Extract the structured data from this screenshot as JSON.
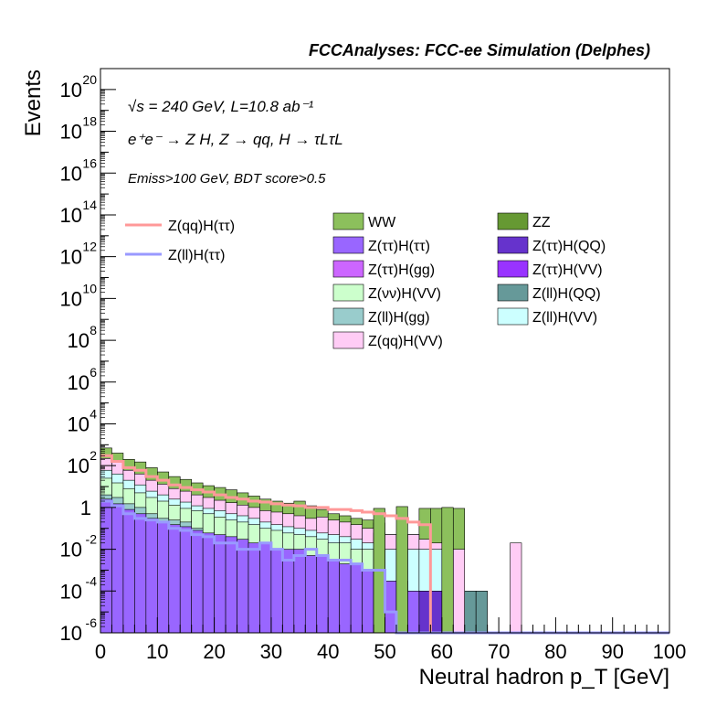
{
  "title": "FCCAnalyses: FCC-ee Simulation (Delphes)",
  "annotations": {
    "line1": "√s = 240 GeV, L=10.8 ab⁻¹",
    "line2": "e⁺e⁻ → Z H, Z → qq, H → τLτL",
    "line3": "Emiss>100 GeV, BDT score>0.5"
  },
  "chart_data": {
    "type": "histogram-stacked",
    "title": "FCCAnalyses: FCC-ee Simulation (Delphes)",
    "xlabel": "Neutral hadron p_T [GeV]",
    "ylabel": "Events",
    "xlim": [
      0,
      100
    ],
    "ylim": [
      1e-06,
      1e+21
    ],
    "log_y": true,
    "grid": false,
    "legend_placement": "upper middle",
    "x_ticks": [
      "0",
      "10",
      "20",
      "30",
      "40",
      "50",
      "60",
      "70",
      "80",
      "90",
      "100"
    ],
    "y_ticks": [
      {
        "base": "10",
        "exp": "-6"
      },
      {
        "base": "10",
        "exp": "-4"
      },
      {
        "base": "10",
        "exp": "-2"
      },
      {
        "base": "1",
        "exp": ""
      },
      {
        "base": "10",
        "exp": "2"
      },
      {
        "base": "10",
        "exp": "4"
      },
      {
        "base": "10",
        "exp": "6"
      },
      {
        "base": "10",
        "exp": "8"
      },
      {
        "base": "10",
        "exp": "10"
      },
      {
        "base": "10",
        "exp": "12"
      },
      {
        "base": "10",
        "exp": "14"
      },
      {
        "base": "10",
        "exp": "16"
      },
      {
        "base": "10",
        "exp": "18"
      },
      {
        "base": "10",
        "exp": "20"
      }
    ],
    "bin_width": 2,
    "bin_edges_start": 0,
    "stack_tops": [
      {
        "name": "WW",
        "color": "#8cc05c",
        "values": [
          700,
          400,
          200,
          150,
          80,
          50,
          30,
          22,
          15,
          11,
          9,
          7,
          5,
          3.5,
          2.5,
          2,
          1.6,
          2,
          1.2,
          0.8,
          0.5,
          0.4,
          0.3,
          0.25,
          0.18,
          0.05,
          0.05,
          0.05,
          0.9,
          0.9,
          0.05,
          0.9,
          0
        ]
      },
      {
        "name": "Z(qq)H(VV)",
        "color": "#ffccf5",
        "values": [
          220,
          150,
          60,
          40,
          20,
          13,
          8,
          6,
          4,
          3,
          2.2,
          1.7,
          1.3,
          1,
          0.7,
          0.6,
          0.5,
          0.4,
          0.3,
          0.35,
          0.25,
          0.2,
          0.15,
          0.1,
          0.06,
          0.05,
          0.05,
          0.05,
          0.03,
          0.02,
          0.01,
          0.01,
          0
        ]
      },
      {
        "name": "Z(ll)H(VV)",
        "color": "#ccffff",
        "values": [
          60,
          40,
          20,
          12,
          6,
          4,
          2.5,
          1.8,
          1.2,
          0.9,
          0.7,
          0.5,
          0.4,
          0.3,
          0.2,
          0.15,
          0.12,
          0.1,
          0.08,
          0.06,
          0.05,
          0.04,
          0.03,
          0.02,
          0.01,
          0.01,
          0.01,
          0.01,
          0.01,
          0.01,
          0.01,
          0,
          0
        ]
      },
      {
        "name": "Z(νν)H(VV)",
        "color": "#ccffcc",
        "values": [
          25,
          15,
          8,
          5,
          3,
          2,
          1.3,
          0.9,
          0.7,
          0.5,
          0.35,
          0.25,
          0.2,
          0.15,
          0.1,
          0.08,
          0.06,
          0.05,
          0.04,
          0.03,
          0.02,
          0.02,
          0.01,
          0.01,
          0.01,
          0,
          0,
          0,
          0,
          0,
          0,
          0,
          0
        ]
      },
      {
        "name": "Z(ll)H(gg)",
        "color": "#99cccc",
        "values": [
          4,
          3,
          1.5,
          1,
          0.5,
          0.3,
          0.25,
          0.2,
          0.1,
          0.05,
          0.03,
          0.02,
          0.01,
          0.01,
          0.005,
          0.005,
          0,
          0,
          0,
          0,
          0,
          0,
          0,
          0,
          0,
          0,
          0,
          0,
          0,
          0,
          0,
          0,
          0
        ]
      },
      {
        "name": "Z(ττ)H(τ τ)",
        "color": "#9966ff",
        "values": [
          2.5,
          1.5,
          0.8,
          0.5,
          0.3,
          0.2,
          0.15,
          0.12,
          0.08,
          0.06,
          0.05,
          0.04,
          0.03,
          0.02,
          0.02,
          0.01,
          0.01,
          0.01,
          0.005,
          0.005,
          0.003,
          0.002,
          0.002,
          0.001,
          0.001,
          0.0003,
          0.0003,
          0.0001,
          0,
          0,
          0,
          0,
          0
        ]
      }
    ],
    "series": [
      {
        "name": "WW",
        "color": "#8cc05c",
        "style": "fill"
      },
      {
        "name": "ZZ",
        "color": "#669933",
        "style": "fill"
      },
      {
        "name": "Z(ττ)H(ττ)",
        "color": "#9966ff",
        "style": "fill"
      },
      {
        "name": "Z(ττ)H(QQ)",
        "color": "#6633cc",
        "style": "fill"
      },
      {
        "name": "Z(ττ)H(gg)",
        "color": "#cc66ff",
        "style": "fill"
      },
      {
        "name": "Z(ττ)H(VV)",
        "color": "#9933ff",
        "style": "fill"
      },
      {
        "name": "Z(νν)H(VV)",
        "color": "#ccffcc",
        "style": "fill"
      },
      {
        "name": "Z(ll)H(QQ)",
        "color": "#669999",
        "style": "fill"
      },
      {
        "name": "Z(ll)H(gg)",
        "color": "#99cccc",
        "style": "fill"
      },
      {
        "name": "Z(ll)H(VV)",
        "color": "#ccffff",
        "style": "fill"
      },
      {
        "name": "Z(qq)H(VV)",
        "color": "#ffccf5",
        "style": "fill"
      },
      {
        "name": "Z(qq)H(ττ)",
        "color": "#ff9999",
        "style": "line",
        "values": [
          300,
          160,
          80,
          60,
          30,
          20,
          12,
          9,
          7,
          5.5,
          4,
          3,
          2.5,
          2,
          1.8,
          1.5,
          1.3,
          1.2,
          1.0,
          1.0,
          0.8,
          0.8,
          0.7,
          0.6,
          0.5,
          0.4,
          0.3,
          0.2,
          0.15,
          0,
          0,
          0,
          0
        ]
      },
      {
        "name": "Z(ll)H(ττ)",
        "color": "#9999ff",
        "style": "line",
        "values": [
          2,
          1.2,
          0.5,
          0.3,
          0.25,
          0.2,
          0.1,
          0.08,
          0.05,
          0.04,
          0.02,
          0.02,
          0.01,
          0.01,
          0.02,
          0.01,
          0.003,
          0.005,
          0.01,
          0.005,
          0.003,
          0.003,
          0.002,
          0.001,
          0.001,
          1e-05,
          0,
          0,
          0,
          0,
          0,
          0,
          0
        ]
      }
    ],
    "extra_bins": [
      {
        "x0": 48,
        "x1": 50,
        "value": 0.9,
        "color": "#8cc05c"
      },
      {
        "x0": 52,
        "x1": 54,
        "value": 1.1,
        "color": "#8cc05c"
      },
      {
        "x0": 60,
        "x1": 62,
        "value": 1.0,
        "color": "#8cc05c"
      },
      {
        "x0": 56,
        "x1": 58,
        "value": 0.0001,
        "color": "#6633cc"
      },
      {
        "x0": 58,
        "x1": 60,
        "value": 0.0001,
        "color": "#6633cc"
      },
      {
        "x0": 64,
        "x1": 66,
        "value": 0.0001,
        "color": "#669999"
      },
      {
        "x0": 66,
        "x1": 68,
        "value": 0.0001,
        "color": "#669999"
      },
      {
        "x0": 72,
        "x1": 74,
        "value": 0.02,
        "color": "#ffccf5"
      }
    ]
  }
}
